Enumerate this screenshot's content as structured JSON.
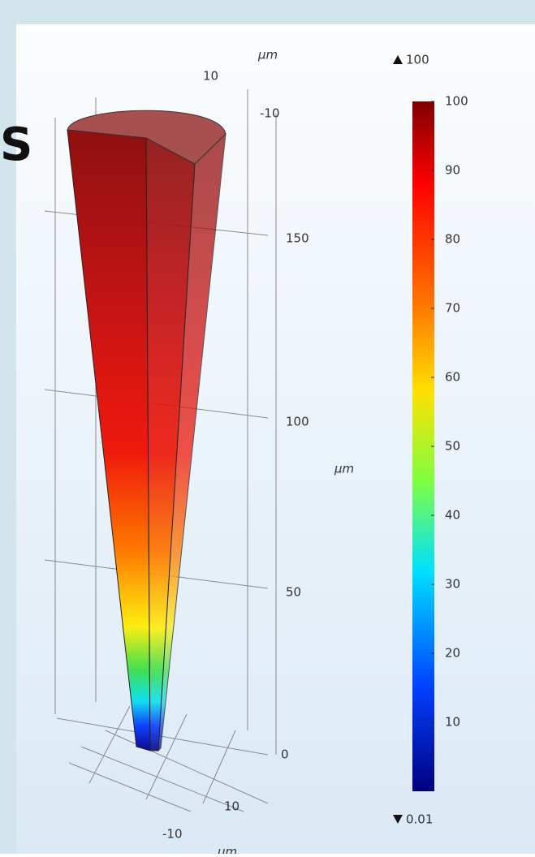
{
  "heading_letter": "S",
  "axes": {
    "unit": "µm",
    "top_x": "10",
    "top_y": "-10",
    "z_labels": [
      "150",
      "100",
      "50",
      "0"
    ],
    "bottom_x": "10",
    "bottom_y": "-10"
  },
  "colorbar": {
    "max": 100,
    "min": 0.01,
    "ticks": [
      100,
      90,
      80,
      70,
      60,
      50,
      40,
      30,
      20,
      10
    ]
  }
}
